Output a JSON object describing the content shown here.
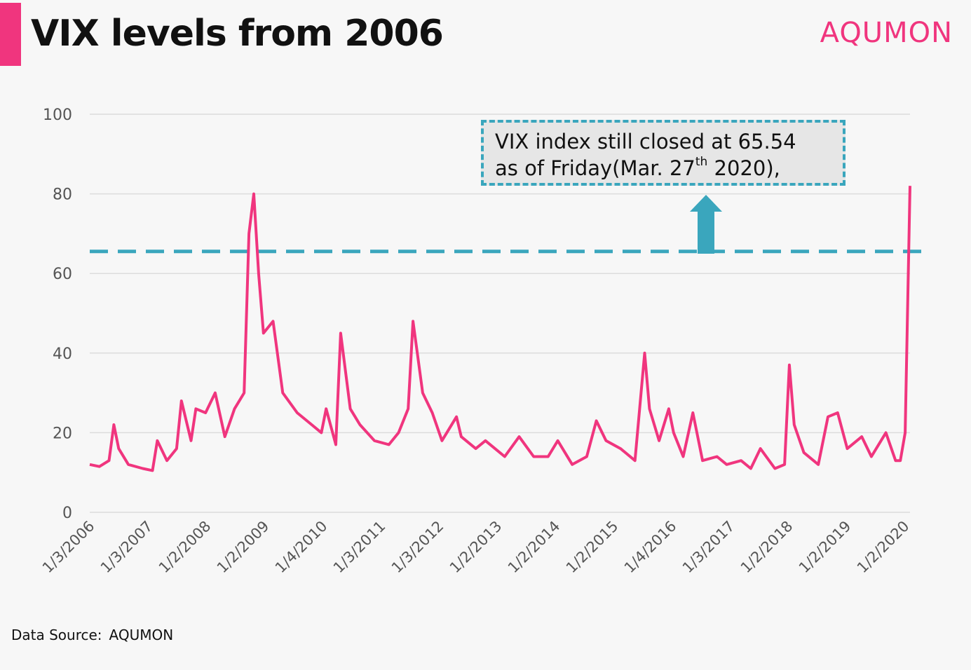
{
  "header": {
    "title": "VIX levels from 2006",
    "brand": "AQUMON"
  },
  "colors": {
    "series": "#f0357e",
    "accent": "#f0357e",
    "reference": "#3aa6bd",
    "grid": "#dcdcdc"
  },
  "annotation": {
    "line1": "VIX index still closed at 65.54",
    "line2_prefix": "as of Friday(Mar. 27",
    "line2_sup": "th",
    "line2_suffix": " 2020),"
  },
  "footer": {
    "source_label": "Data Source:",
    "source_value": "AQUMON"
  },
  "chart_data": {
    "type": "line",
    "title": "VIX levels from 2006",
    "xlabel": "",
    "ylabel": "",
    "ylim": [
      0,
      100
    ],
    "yticks": [
      0,
      20,
      40,
      60,
      80,
      100
    ],
    "grid": true,
    "legend": "none",
    "x_tick_labels": [
      "1/3/2006",
      "1/3/2007",
      "1/2/2008",
      "1/2/2009",
      "1/4/2010",
      "1/3/2011",
      "1/3/2012",
      "1/2/2013",
      "1/2/2014",
      "1/2/2015",
      "1/4/2016",
      "1/3/2017",
      "1/2/2018",
      "1/2/2019",
      "1/2/2020"
    ],
    "reference_line": {
      "y": 65.54,
      "style": "dashed"
    },
    "series": [
      {
        "x": [
          "2006-01",
          "2006-03",
          "2006-05",
          "2006-06",
          "2006-07",
          "2006-09",
          "2006-12",
          "2007-02",
          "2007-03",
          "2007-05",
          "2007-07",
          "2007-08",
          "2007-10",
          "2007-11",
          "2008-01",
          "2008-03",
          "2008-05",
          "2008-07",
          "2008-09",
          "2008-10",
          "2008-11",
          "2008-12",
          "2009-01",
          "2009-03",
          "2009-05",
          "2009-08",
          "2009-11",
          "2010-01",
          "2010-02",
          "2010-04",
          "2010-05",
          "2010-07",
          "2010-09",
          "2010-12",
          "2011-03",
          "2011-05",
          "2011-07",
          "2011-08",
          "2011-10",
          "2011-12",
          "2012-02",
          "2012-05",
          "2012-06",
          "2012-09",
          "2012-11",
          "2012-12",
          "2013-03",
          "2013-06",
          "2013-09",
          "2013-12",
          "2014-02",
          "2014-05",
          "2014-08",
          "2014-10",
          "2014-12",
          "2015-03",
          "2015-06",
          "2015-08",
          "2015-09",
          "2015-11",
          "2016-01",
          "2016-02",
          "2016-04",
          "2016-06",
          "2016-08",
          "2016-11",
          "2017-01",
          "2017-04",
          "2017-06",
          "2017-08",
          "2017-11",
          "2018-01",
          "2018-02",
          "2018-03",
          "2018-05",
          "2018-08",
          "2018-10",
          "2018-12",
          "2019-02",
          "2019-05",
          "2019-07",
          "2019-10",
          "2019-12",
          "2020-01",
          "2020-02",
          "2020-03"
        ],
        "values": [
          12,
          11.5,
          13,
          22,
          16,
          12,
          11,
          10.5,
          18,
          13,
          16,
          28,
          18,
          26,
          25,
          30,
          19,
          26,
          30,
          70,
          80,
          60,
          45,
          48,
          30,
          25,
          22,
          20,
          26,
          17,
          45,
          26,
          22,
          18,
          17,
          20,
          26,
          48,
          30,
          25,
          18,
          24,
          19,
          16,
          18,
          17,
          14,
          19,
          14,
          14,
          18,
          12,
          14,
          23,
          18,
          16,
          13,
          40,
          26,
          18,
          26,
          20,
          14,
          25,
          13,
          14,
          12,
          13,
          11,
          16,
          11,
          12,
          37,
          22,
          15,
          12,
          24,
          25,
          16,
          19,
          14,
          20,
          13,
          13,
          20,
          82
        ]
      }
    ]
  }
}
